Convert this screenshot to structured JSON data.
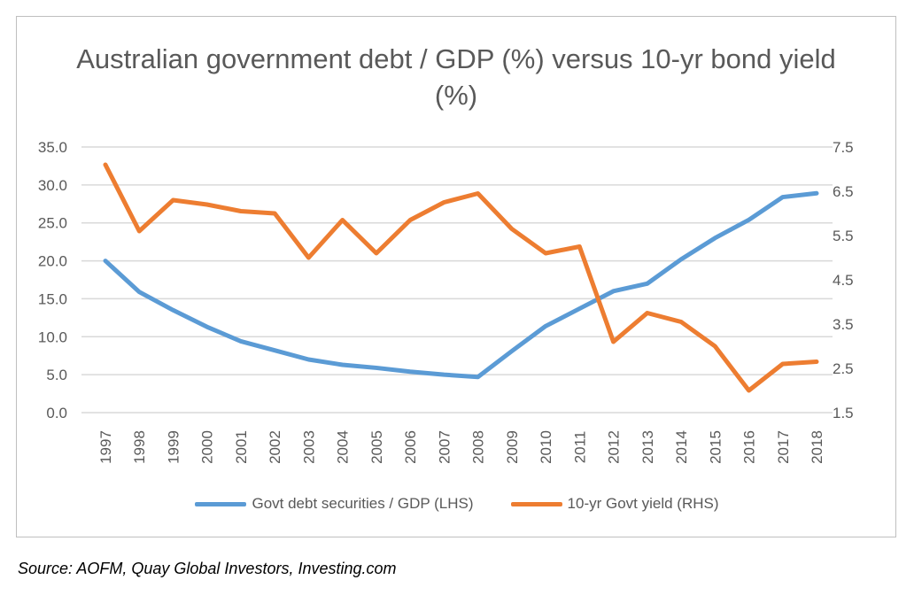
{
  "chart_data": {
    "type": "line",
    "title": "Australian government debt / GDP (%) versus 10-yr bond yield (%)",
    "categories": [
      "1997",
      "1998",
      "1999",
      "2000",
      "2001",
      "2002",
      "2003",
      "2004",
      "2005",
      "2006",
      "2007",
      "2008",
      "2009",
      "2010",
      "2011",
      "2012",
      "2013",
      "2014",
      "2015",
      "2016",
      "2017",
      "2018"
    ],
    "y_left": {
      "ylim": [
        0,
        35
      ],
      "ticks": [
        "0.0",
        "5.0",
        "10.0",
        "15.0",
        "20.0",
        "25.0",
        "30.0",
        "35.0"
      ]
    },
    "y_right": {
      "ylim": [
        1.5,
        7.5
      ],
      "ticks": [
        "1.5",
        "2.5",
        "3.5",
        "4.5",
        "5.5",
        "6.5",
        "7.5"
      ]
    },
    "grid": true,
    "legend_position": "bottom",
    "series": [
      {
        "name": "Govt debt securities / GDP (LHS)",
        "axis": "left",
        "color": "#5b9bd5",
        "values": [
          20.0,
          15.9,
          13.5,
          11.3,
          9.4,
          8.2,
          7.0,
          6.3,
          5.9,
          5.4,
          5.0,
          4.7,
          8.1,
          11.4,
          13.7,
          16.0,
          17.0,
          20.2,
          23.0,
          25.4,
          28.4,
          28.9
        ]
      },
      {
        "name": "10-yr Govt yield (RHS)",
        "axis": "right",
        "color": "#ed7d31",
        "values": [
          7.1,
          5.6,
          6.3,
          6.2,
          6.05,
          6.0,
          5.0,
          5.85,
          5.1,
          5.85,
          6.25,
          6.45,
          5.65,
          5.1,
          5.25,
          3.1,
          3.75,
          3.55,
          3.0,
          2.0,
          2.6,
          2.65
        ]
      }
    ]
  },
  "source": "Source: AOFM, Quay Global Investors, Investing.com"
}
